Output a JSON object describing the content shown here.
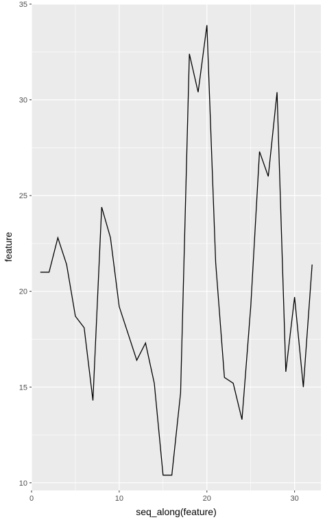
{
  "chart_data": {
    "type": "line",
    "xlabel": "seq_along(feature)",
    "ylabel": "feature",
    "xlim": [
      0,
      33
    ],
    "ylim": [
      9.6,
      35
    ],
    "x_ticks": [
      0,
      10,
      20,
      30
    ],
    "y_ticks": [
      10,
      15,
      20,
      25,
      30,
      35
    ],
    "x_tick_labels": [
      "0",
      "10",
      "20",
      "30"
    ],
    "y_tick_labels": [
      "10",
      "15",
      "20",
      "25",
      "30",
      "35"
    ],
    "grid": true,
    "legend": "none",
    "series": [
      {
        "x": [
          1,
          2,
          3,
          4,
          5,
          6,
          7,
          8,
          9,
          10,
          11,
          12,
          13,
          14,
          15,
          16,
          17,
          18,
          19,
          20,
          21,
          22,
          23,
          24,
          25,
          26,
          27,
          28,
          29,
          30,
          31,
          32
        ],
        "values": [
          21.0,
          21.0,
          22.8,
          21.4,
          18.7,
          18.1,
          14.3,
          24.4,
          22.8,
          19.2,
          17.8,
          16.4,
          17.3,
          15.2,
          10.4,
          10.4,
          14.7,
          32.4,
          30.4,
          33.9,
          21.5,
          15.5,
          15.2,
          13.3,
          19.2,
          27.3,
          26.0,
          30.4,
          15.8,
          19.7,
          15.0,
          21.4
        ]
      }
    ],
    "colors": {
      "panel_bg": "#ebebeb",
      "grid": "#ffffff",
      "line": "#000000",
      "tick_text": "#4d4d4d"
    }
  }
}
